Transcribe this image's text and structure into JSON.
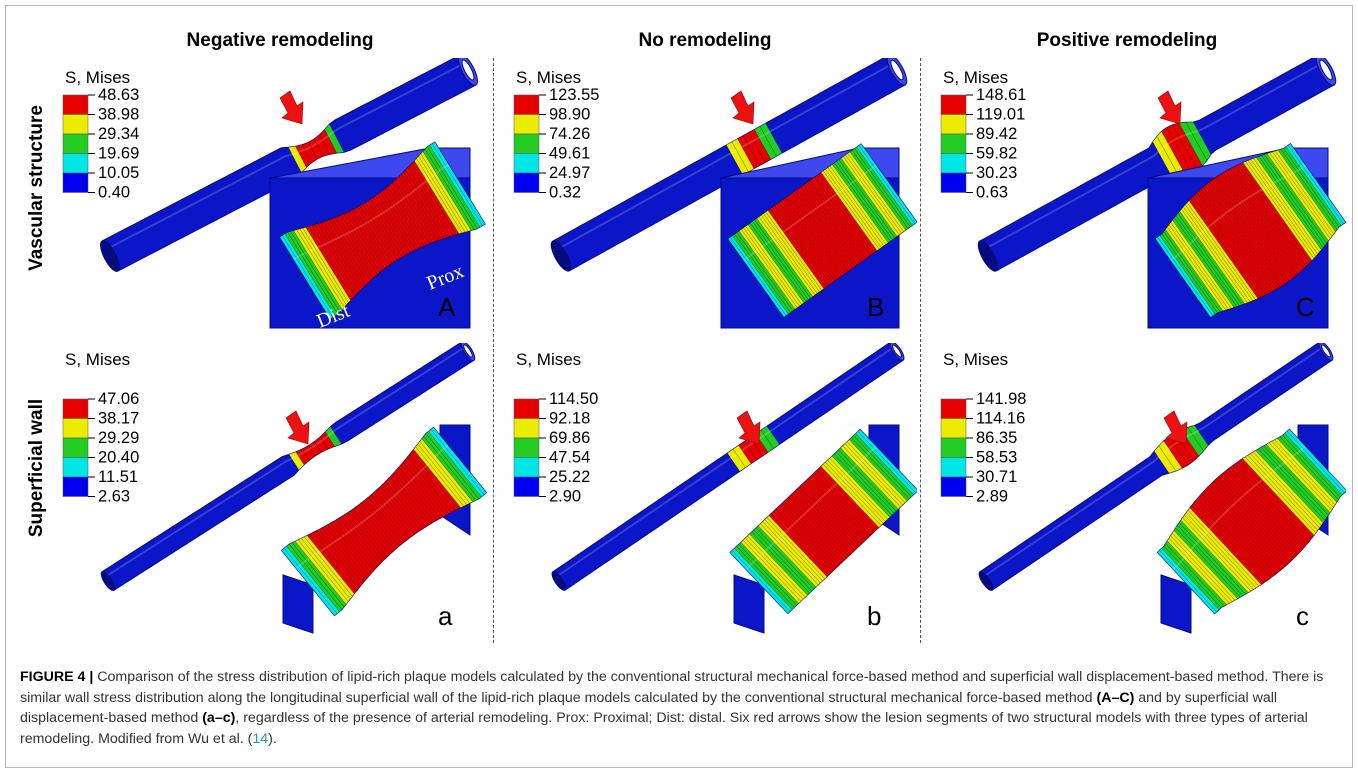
{
  "figure": {
    "column_titles": [
      "Negative remodeling",
      "No remodeling",
      "Positive remodeling"
    ],
    "row_labels": [
      "Vascular structure",
      "Superficial wall"
    ],
    "legend_title": "S, Mises",
    "colors": {
      "scale": [
        "#e60000",
        "#ecec00",
        "#22cc22",
        "#00e6e6",
        "#0000ee"
      ],
      "vessel_blue": "#0b16c8",
      "arrow_red": "#ee1111"
    },
    "panels": [
      {
        "letter": "A",
        "legend_values": [
          "48.63",
          "38.98",
          "29.34",
          "19.69",
          "10.05",
          "0.40"
        ],
        "labels": {
          "prox": "Prox",
          "dist": "Dist"
        }
      },
      {
        "letter": "B",
        "legend_values": [
          "123.55",
          "98.90",
          "74.26",
          "49.61",
          "24.97",
          "0.32"
        ]
      },
      {
        "letter": "C",
        "legend_values": [
          "148.61",
          "119.01",
          "89.42",
          "59.82",
          "30.23",
          "0.63"
        ]
      },
      {
        "letter": "a",
        "legend_values": [
          "47.06",
          "38.17",
          "29.29",
          "20.40",
          "11.51",
          "2.63"
        ]
      },
      {
        "letter": "b",
        "legend_values": [
          "114.50",
          "92.18",
          "69.86",
          "47.54",
          "25.22",
          "2.90"
        ]
      },
      {
        "letter": "c",
        "legend_values": [
          "141.98",
          "114.16",
          "86.35",
          "58.53",
          "30.71",
          "2.89"
        ]
      }
    ]
  },
  "caption": {
    "label": "FIGURE 4 |",
    "text_1": "Comparison of the stress distribution of lipid-rich plaque models calculated by the conventional structural mechanical force-based method and superficial wall displacement-based method. There is similar wall stress distribution along the longitudinal superficial wall of the lipid-rich plaque models calculated by the conventional structural mechanical force-based method",
    "ref_upper": "(A–C)",
    "text_2": "and by superficial wall displacement-based method",
    "ref_lower": "(a–c)",
    "text_3": ", regardless of the presence of arterial remodeling. Prox: Proximal; Dist: distal. Six red arrows show the lesion segments of two structural models with three types of arterial remodeling. Modified from Wu et al. (",
    "citation": "14",
    "text_4": ")."
  }
}
